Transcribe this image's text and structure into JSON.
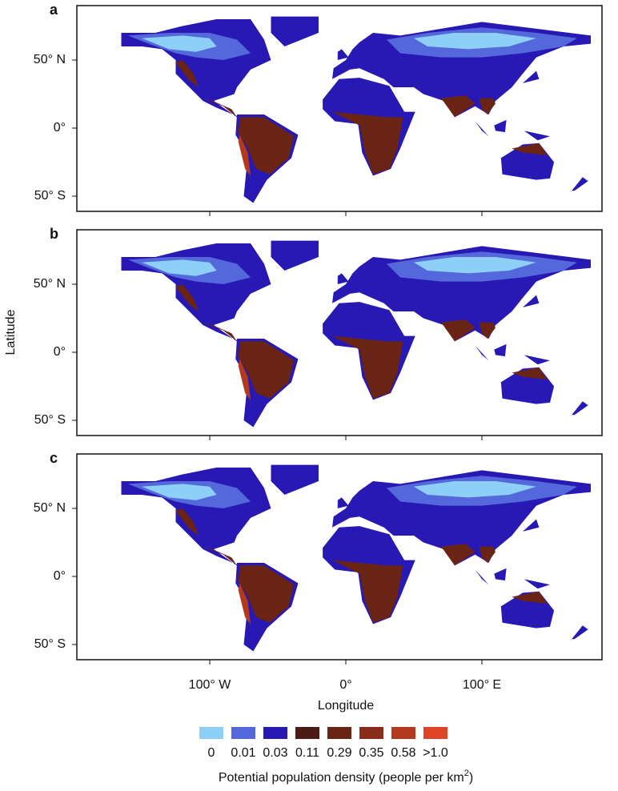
{
  "figure": {
    "panels": [
      "a",
      "b",
      "c"
    ],
    "y_axis_label": "Latitude",
    "y_ticks": [
      "50° N",
      "0°",
      "50° S"
    ],
    "x_axis_label": "Longitude",
    "x_ticks": [
      "100° W",
      "0°",
      "100° E"
    ],
    "legend": {
      "items": [
        {
          "label": "0",
          "color": "#8ecff7"
        },
        {
          "label": "0.01",
          "color": "#5468db"
        },
        {
          "label": "0.03",
          "color": "#2818b4"
        },
        {
          "label": "0.11",
          "color": "#4a1c14"
        },
        {
          "label": "0.29",
          "color": "#6a2414"
        },
        {
          "label": "0.35",
          "color": "#8a2c1a"
        },
        {
          "label": "0.58",
          "color": "#b3391f"
        },
        {
          "label": ">1.0",
          "color": "#dd4526"
        }
      ],
      "title_text": "Potential population density (people per km",
      "title_superscript": "2",
      "title_end": ")"
    }
  }
}
